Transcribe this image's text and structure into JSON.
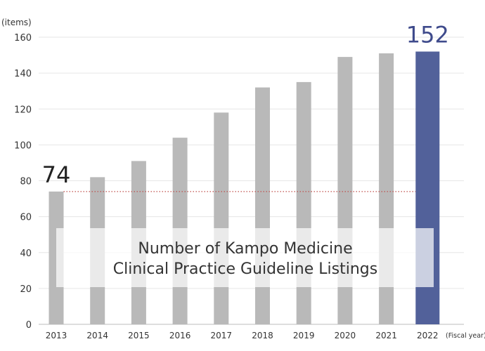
{
  "chart_data": {
    "type": "bar",
    "y_unit": "(items)",
    "x_unit": "(Fiscal year)",
    "categories": [
      "2013",
      "2014",
      "2015",
      "2016",
      "2017",
      "2018",
      "2019",
      "2020",
      "2021",
      "2022"
    ],
    "values": [
      74,
      82,
      91,
      104,
      118,
      132,
      135,
      149,
      151,
      152
    ],
    "ylim": [
      0,
      160
    ],
    "yticks": [
      0,
      20,
      40,
      60,
      80,
      100,
      120,
      140,
      160
    ],
    "grid": true,
    "highlight_index": 9,
    "bar_color": "#b9b9b9",
    "highlight_color": "#52619a",
    "reference_line": {
      "value": 74,
      "color": "#c0504d",
      "style": "dotted"
    },
    "annotations": [
      {
        "category": "2013",
        "text": "74"
      },
      {
        "category": "2022",
        "text": "152",
        "color": "#3f4b8c"
      }
    ],
    "overlay_title": [
      "Number of Kampo Medicine",
      "Clinical Practice Guideline Listings"
    ]
  }
}
